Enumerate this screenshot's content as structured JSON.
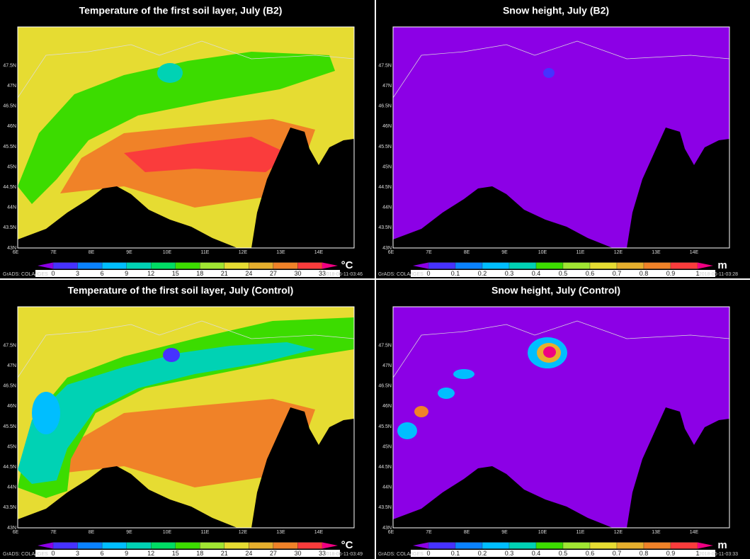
{
  "map": {
    "lon_labels": [
      "6E",
      "7E",
      "8E",
      "9E",
      "10E",
      "11E",
      "12E",
      "13E",
      "14E"
    ],
    "lat_labels": [
      "43N",
      "43.5N",
      "44N",
      "44.5N",
      "45N",
      "45.5N",
      "46N",
      "46.5N",
      "47N",
      "47.5N"
    ]
  },
  "panels": [
    {
      "title": "Temperature of the first soil layer, July (B2)",
      "unit": "°C",
      "credit": "GrADS: COLA/IGES",
      "timestamp": "2018-06-11-03:46",
      "field": "temperature",
      "scenario": "b2",
      "colorbar": {
        "ticks": [
          0,
          3,
          6,
          9,
          12,
          15,
          18,
          21,
          24,
          27,
          30,
          33
        ],
        "colors": [
          "#c800c8",
          "#8c00e6",
          "#4632ff",
          "#0a82ff",
          "#00beff",
          "#00d2b4",
          "#00dc64",
          "#3cdc00",
          "#a0e632",
          "#e6dc32",
          "#e6af2d",
          "#f08228",
          "#fa3c3c",
          "#f00082"
        ]
      }
    },
    {
      "title": "Snow height, July (B2)",
      "unit": "m",
      "credit": "GrADS: COLA/IGES",
      "timestamp": "2018-06-11-03:28",
      "field": "snow",
      "scenario": "b2",
      "colorbar": {
        "ticks": [
          0,
          0.1,
          0.2,
          0.3,
          0.4,
          0.5,
          0.6,
          0.7,
          0.8,
          0.9,
          1
        ],
        "colors": [
          "#c800c8",
          "#8c00e6",
          "#4632ff",
          "#0a82ff",
          "#00beff",
          "#00d2b4",
          "#3cdc00",
          "#a0e632",
          "#e6dc32",
          "#e6af2d",
          "#f08228",
          "#fa3c3c",
          "#f00082"
        ]
      }
    },
    {
      "title": "Temperature of the first soil layer, July (Control)",
      "unit": "°C",
      "credit": "GrADS: COLA/IGES",
      "timestamp": "2018-06-11-03:49",
      "field": "temperature",
      "scenario": "control",
      "colorbar": {
        "ticks": [
          0,
          3,
          6,
          9,
          12,
          15,
          18,
          21,
          24,
          27,
          30,
          33
        ],
        "colors": [
          "#c800c8",
          "#8c00e6",
          "#4632ff",
          "#0a82ff",
          "#00beff",
          "#00d2b4",
          "#00dc64",
          "#3cdc00",
          "#a0e632",
          "#e6dc32",
          "#e6af2d",
          "#f08228",
          "#fa3c3c",
          "#f00082"
        ]
      }
    },
    {
      "title": "Snow height, July (Control)",
      "unit": "m",
      "credit": "GrADS: COLA/IGES",
      "timestamp": "2018-06-11-03:33",
      "field": "snow",
      "scenario": "control",
      "colorbar": {
        "ticks": [
          0,
          0.1,
          0.2,
          0.3,
          0.4,
          0.5,
          0.6,
          0.7,
          0.8,
          0.9,
          1
        ],
        "colors": [
          "#c800c8",
          "#8c00e6",
          "#4632ff",
          "#0a82ff",
          "#00beff",
          "#00d2b4",
          "#3cdc00",
          "#a0e632",
          "#e6dc32",
          "#e6af2d",
          "#f08228",
          "#fa3c3c",
          "#f00082"
        ]
      }
    }
  ]
}
